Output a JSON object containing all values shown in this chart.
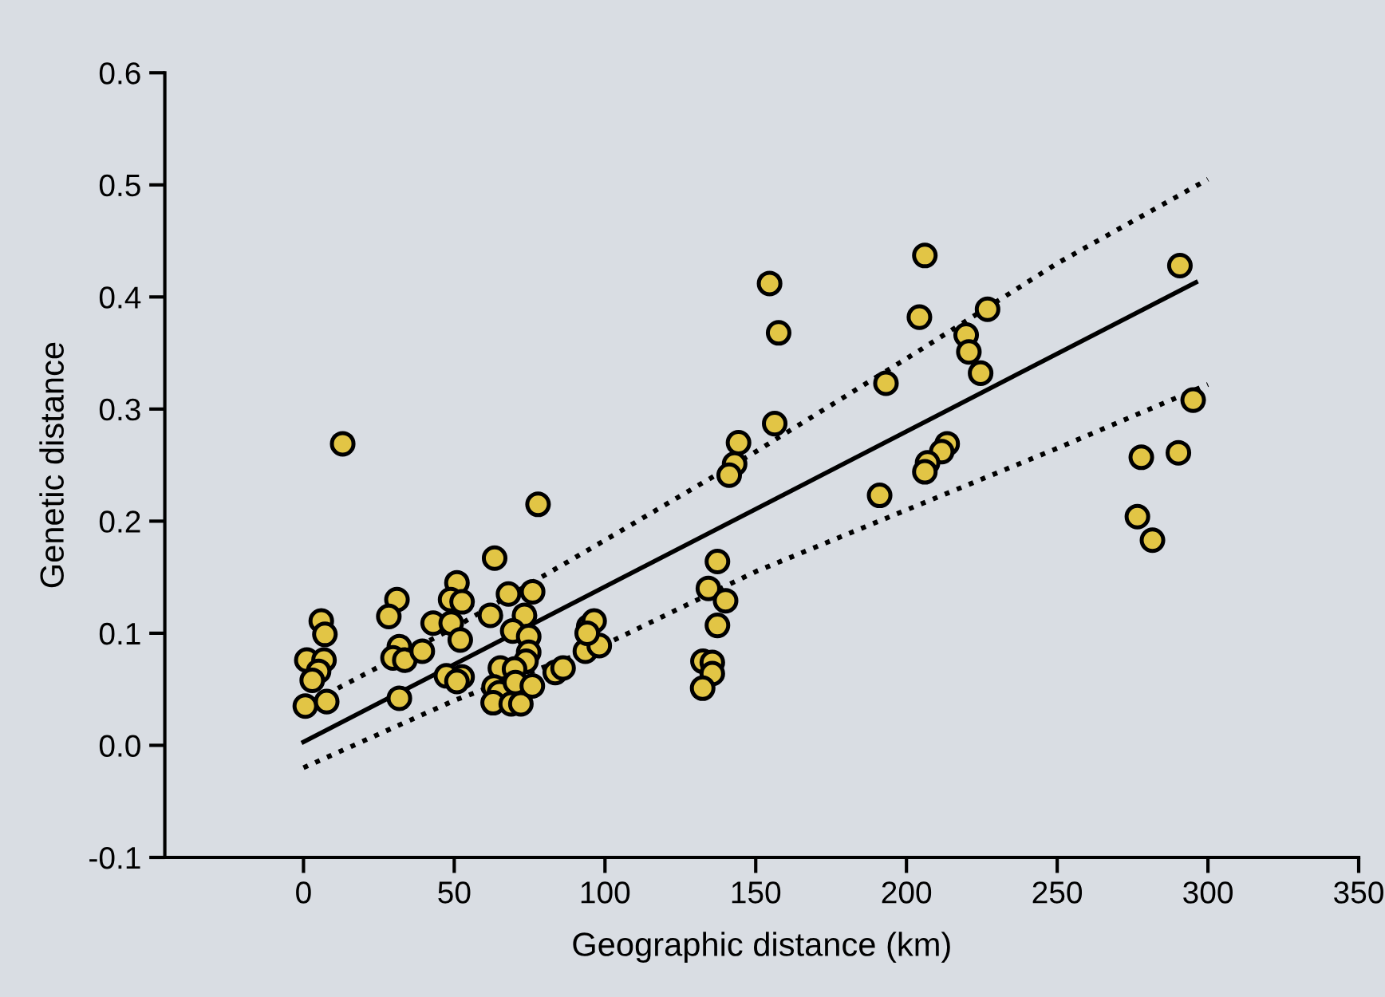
{
  "chart_data": {
    "type": "scatter",
    "xlabel": "Geographic distance (km)",
    "ylabel": "Genetic distance",
    "xlim": [
      -46,
      350
    ],
    "xticks": [
      0,
      50,
      100,
      150,
      200,
      250,
      300,
      350
    ],
    "ylim": [
      -0.1,
      0.6
    ],
    "yticks": [
      {
        "value": -0.1,
        "label": "-0.1"
      },
      {
        "value": 0.0,
        "label": "0.0"
      },
      0.1,
      0.2,
      0.3,
      0.4,
      0.5,
      0.6
    ],
    "grid": false,
    "legend": false,
    "series": [
      {
        "color": "#e2c545",
        "marker": "circle",
        "x": [
          77.8,
          63.4,
          50.9,
          48.8,
          52.6,
          31,
          28.3,
          5.9,
          7.1,
          43,
          49,
          52,
          62,
          68,
          76,
          73.3,
          69.4,
          74.7,
          74.7,
          73.8,
          65.3,
          70,
          31.8,
          29.7,
          33.6,
          39.4,
          1.1,
          6.8,
          5,
          2.9,
          0.6,
          7.7,
          31.8,
          47.4,
          52.6,
          50.9,
          63.2,
          65,
          62.9,
          68.9,
          72.1,
          70.3,
          75.9,
          83.5,
          86.1,
          94.6,
          96.4,
          93.5,
          98.1,
          94.1,
          13,
          206.1,
          154.6,
          157.6,
          204.3,
          226.9,
          219.8,
          220.7,
          224.6,
          193.2,
          156.3,
          144.3,
          143,
          141.2,
          213.5,
          211.7,
          207,
          206.1,
          191.1,
          137.3,
          134.3,
          140,
          137.3,
          132.5,
          135.6,
          135.6,
          132.4,
          290.7,
          295.1,
          277.9,
          290.2,
          276.6,
          281.6
        ],
        "values": [
          0.215,
          0.167,
          0.145,
          0.13,
          0.128,
          0.13,
          0.115,
          0.111,
          0.099,
          0.109,
          0.109,
          0.094,
          0.116,
          0.135,
          0.137,
          0.116,
          0.102,
          0.097,
          0.083,
          0.075,
          0.069,
          0.068,
          0.088,
          0.078,
          0.076,
          0.084,
          0.076,
          0.076,
          0.066,
          0.058,
          0.035,
          0.039,
          0.042,
          0.062,
          0.061,
          0.057,
          0.052,
          0.047,
          0.038,
          0.037,
          0.037,
          0.056,
          0.053,
          0.065,
          0.069,
          0.106,
          0.111,
          0.084,
          0.089,
          0.1,
          0.269,
          0.437,
          0.412,
          0.368,
          0.382,
          0.389,
          0.366,
          0.351,
          0.332,
          0.323,
          0.287,
          0.27,
          0.251,
          0.241,
          0.269,
          0.262,
          0.252,
          0.244,
          0.223,
          0.164,
          0.14,
          0.129,
          0.107,
          0.075,
          0.074,
          0.064,
          0.051,
          0.428,
          0.308,
          0.257,
          0.261,
          0.204,
          0.183
        ]
      },
      {
        "type": "line",
        "color": "#000000",
        "line_style": "solid",
        "marker": "none",
        "x": [
          0,
          296
        ],
        "values": [
          0.003,
          0.413
        ]
      },
      {
        "type": "line",
        "color": "#000000",
        "line_style": "dotted",
        "marker": "none",
        "x": [
          0,
          50,
          100,
          150,
          200,
          250,
          300
        ],
        "values": [
          0.035,
          0.105,
          0.183,
          0.262,
          0.345,
          0.43,
          0.505
        ]
      },
      {
        "type": "line",
        "color": "#000000",
        "line_style": "dotted",
        "marker": "none",
        "x": [
          0,
          50,
          100,
          150,
          200,
          250,
          300
        ],
        "values": [
          -0.02,
          0.04,
          0.09,
          0.155,
          0.21,
          0.265,
          0.322
        ]
      }
    ]
  }
}
